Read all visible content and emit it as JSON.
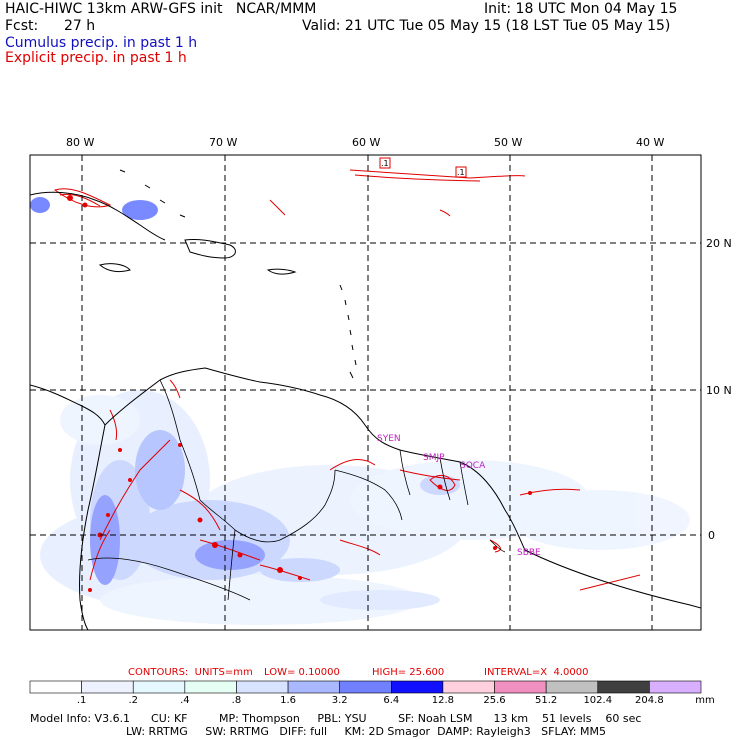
{
  "header": {
    "model_title": "HAIC-HIWC 13km ARW-GFS init   NCAR/MMM",
    "init_time": "Init: 18 UTC Mon 04 May 15",
    "forecast_label": "Fcst:",
    "forecast_hours": "27 h",
    "valid_time": "Valid: 21 UTC Tue 05 May 15 (18 LST Tue 05 May 15)",
    "field_cumulus": "Cumulus precip. in past 1 h",
    "field_explicit": "Explicit precip. in past 1 h",
    "cumulus_color": "#1010c0",
    "explicit_color": "#e00000"
  },
  "map": {
    "longitude_labels": [
      "80 W",
      "70 W",
      "60 W",
      "50 W",
      "40 W"
    ],
    "latitude_labels": [
      "20 N",
      "10 N",
      "0"
    ],
    "contour_labels": [
      ".1",
      ".1"
    ],
    "station_labels": [
      "SYEN",
      "SMJP",
      "SOCA",
      "SBBE"
    ],
    "station_color": "#c020c0",
    "coastline_color": "#000000",
    "explicit_contour_color": "#e00000",
    "cumulus_shading_color": "#4a5aff"
  },
  "contours": {
    "units_label": "CONTOURS:  UNITS=mm",
    "low_label": "LOW= 0.10000",
    "high_label": "HIGH= 25.600",
    "interval_label": "INTERVAL=X  4.0000"
  },
  "colorbar": {
    "labels": [
      ".1",
      ".2",
      ".4",
      ".8",
      "1.6",
      "3.2",
      "6.4",
      "12.8",
      "25.6",
      "51.2",
      "102.4",
      "204.8"
    ],
    "unit": "mm",
    "colors": [
      "#ffffff",
      "#eef2ff",
      "#e6f8ff",
      "#e6fff4",
      "#d8e4ff",
      "#aab8ff",
      "#7080ff",
      "#1010ff",
      "#ffd0dd",
      "#f090c0",
      "#c0c0c0",
      "#404040",
      "#d8b0ff"
    ]
  },
  "footer": {
    "line1": "Model Info: V3.6.1      CU: KF         MP: Thompson     PBL: YSU         SF: Noah LSM      13 km    51 levels    60 sec",
    "line2": "LW: RRTMG     SW: RRTMG   DIFF: full     KM: 2D Smagor  DAMP: Rayleigh3   SFLAY: MM5"
  }
}
